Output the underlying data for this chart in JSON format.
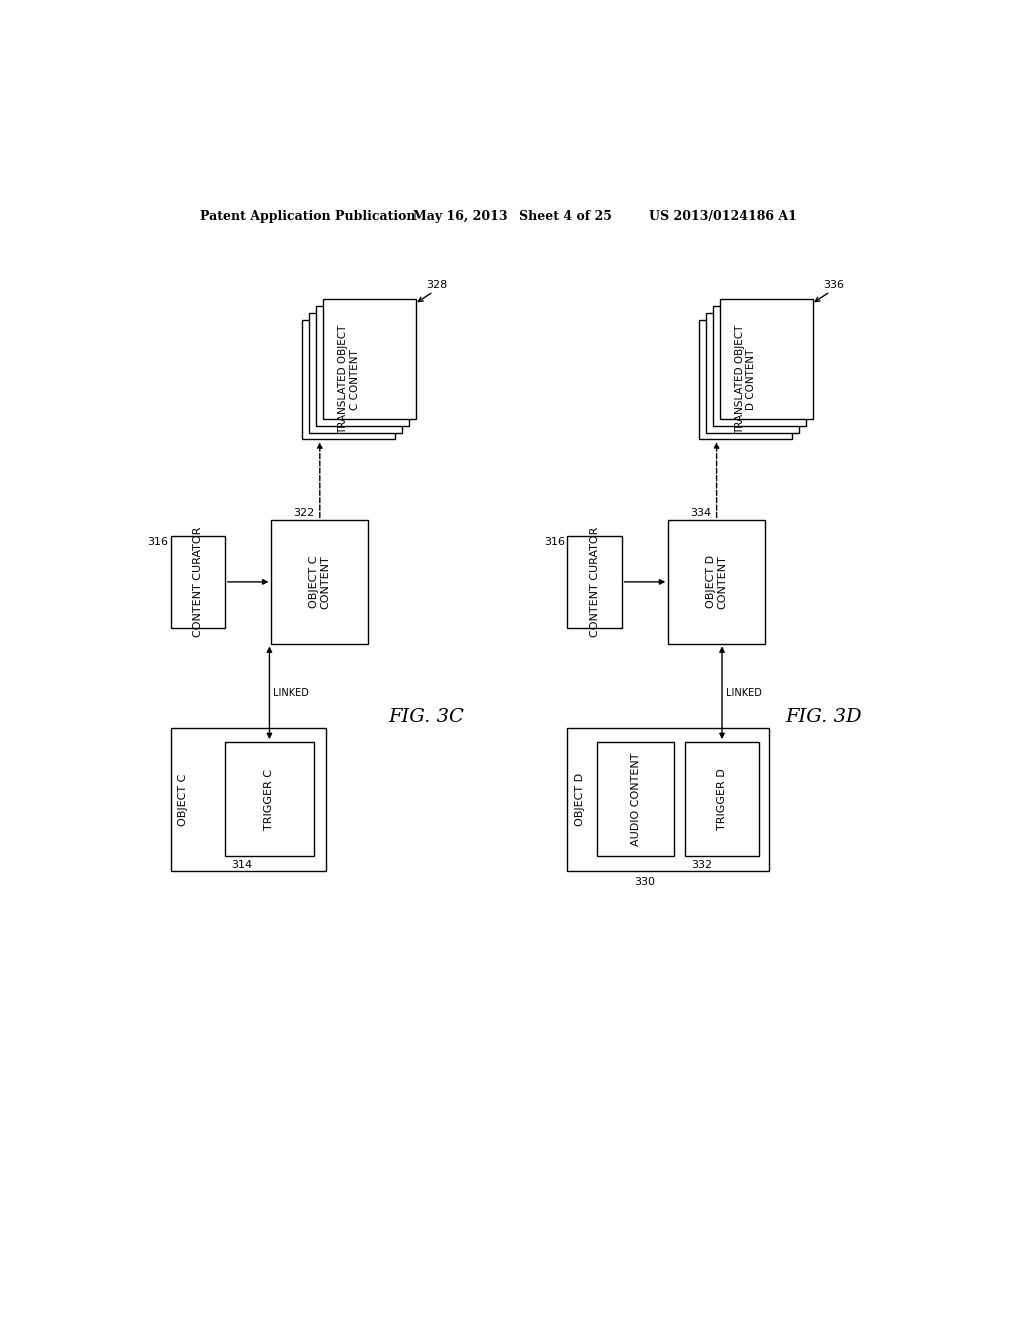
{
  "bg_color": "#ffffff",
  "header_text": "Patent Application Publication",
  "header_date": "May 16, 2013",
  "header_sheet": "Sheet 4 of 25",
  "header_patent": "US 2013/0124186 A1",
  "fig3c_label": "FIG. 3C",
  "fig3d_label": "FIG. 3D",
  "label_314": "314",
  "label_316": "316",
  "label_322": "322",
  "label_328": "328",
  "label_330": "330",
  "label_332": "332",
  "label_334": "334",
  "label_336": "336",
  "border_color": "#000000",
  "text_color": "#000000",
  "font_size": 8.0,
  "line_width": 1.0
}
